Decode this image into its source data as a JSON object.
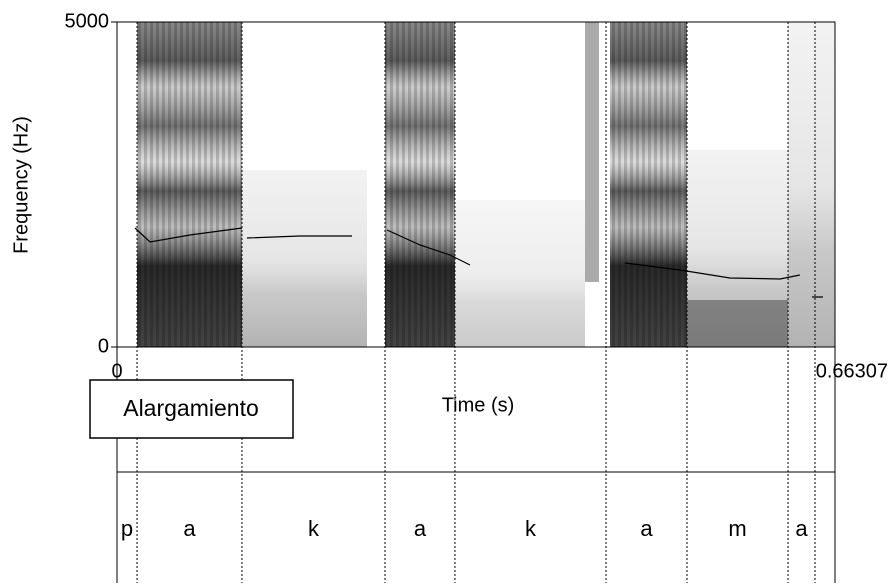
{
  "chart_data": {
    "type": "spectrogram",
    "xlabel": "Time (s)",
    "ylabel": "Frequency (Hz)",
    "xlim": [
      0,
      0.66307
    ],
    "xticks": [
      0,
      0.66307
    ],
    "ylim": [
      0,
      5000
    ],
    "yticks": [
      0,
      5000
    ],
    "contour": {
      "color": "#000000",
      "x": [
        0.0166,
        0.0305,
        0.0674,
        0.1154,
        null,
        0.1201,
        0.169,
        0.217,
        null,
        0.2493,
        0.2798,
        0.3075,
        0.326,
        null,
        0.4691,
        0.5199,
        0.5661,
        0.6123,
        0.6307,
        null,
        0.6418,
        0.652
      ],
      "values": [
        1831,
        1615,
        1723,
        1831,
        null,
        1677,
        1708,
        1708,
        null,
        1800,
        1569,
        1415,
        1262,
        null,
        1292,
        1185,
        1062,
        1046,
        1108,
        null,
        769,
        769
      ]
    },
    "tier": {
      "boundaries": [
        0.0185,
        0.1154,
        0.2475,
        0.3121,
        0.4516,
        0.5264,
        0.6197,
        0.6446
      ],
      "labels": [
        "p",
        "a",
        "k",
        "a",
        "k",
        "a",
        "m",
        "a",
        null
      ]
    },
    "annotation": "Alargamiento"
  }
}
